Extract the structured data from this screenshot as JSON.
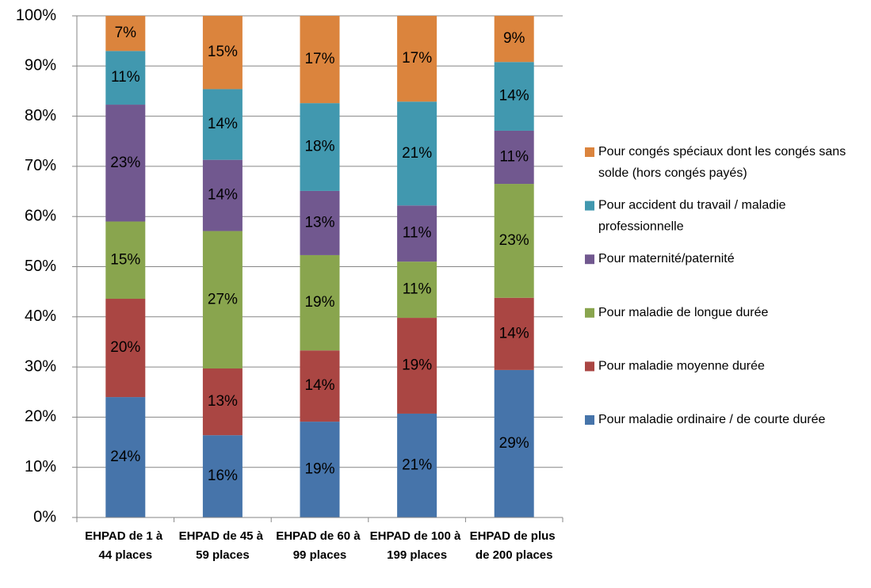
{
  "chart_data": {
    "type": "stacked_bar",
    "categories": [
      "EHPAD de 1 à 44 places",
      "EHPAD de 45 à 59 places",
      "EHPAD de 60 à 99 places",
      "EHPAD de 100 à 199 places",
      "EHPAD de plus de 200 places"
    ],
    "series": [
      {
        "name": "Pour maladie ordinaire / de courte durée",
        "color": "#4674aa",
        "values": [
          24.0,
          16.4,
          19.1,
          20.7,
          29.4
        ],
        "value_labels": [
          "24%",
          "16%",
          "19%",
          "21%",
          "29%"
        ]
      },
      {
        "name": "Pour maladie moyenne durée",
        "color": "#aa4643",
        "values": [
          19.6,
          13.3,
          14.2,
          19.1,
          14.4
        ],
        "value_labels": [
          "20%",
          "13%",
          "14%",
          "19%",
          "14%"
        ]
      },
      {
        "name": "Pour maladie de longue durée",
        "color": "#89a54e",
        "values": [
          15.4,
          27.4,
          19.0,
          11.2,
          22.7
        ],
        "value_labels": [
          "15%",
          "27%",
          "19%",
          "11%",
          "23%"
        ]
      },
      {
        "name": "Pour maternité/paternité",
        "color": "#71588f",
        "values": [
          23.3,
          14.2,
          12.8,
          11.2,
          10.6
        ],
        "value_labels": [
          "23%",
          "14%",
          "13%",
          "11%",
          "11%"
        ]
      },
      {
        "name": "Pour accident du travail / maladie professionnelle",
        "color": "#4198af",
        "values": [
          10.7,
          14.1,
          17.5,
          20.7,
          13.7
        ],
        "value_labels": [
          "11%",
          "14%",
          "18%",
          "21%",
          "14%"
        ]
      },
      {
        "name": "Pour congés spéciaux dont les congés sans solde (hors congés payés)",
        "color": "#db843d",
        "values": [
          7.0,
          14.6,
          17.4,
          17.1,
          9.2
        ],
        "value_labels": [
          "7%",
          "15%",
          "17%",
          "17%",
          "9%"
        ]
      }
    ],
    "ylim": [
      0,
      100
    ],
    "yticks": [
      {
        "value": 0,
        "label": "0%"
      },
      {
        "value": 10,
        "label": "10%"
      },
      {
        "value": 20,
        "label": "20%"
      },
      {
        "value": 30,
        "label": "30%"
      },
      {
        "value": 40,
        "label": "40%"
      },
      {
        "value": 50,
        "label": "50%"
      },
      {
        "value": 60,
        "label": "60%"
      },
      {
        "value": 70,
        "label": "70%"
      },
      {
        "value": 80,
        "label": "80%"
      },
      {
        "value": 90,
        "label": "90%"
      },
      {
        "value": 100,
        "label": "100%"
      }
    ],
    "grid": true,
    "legend": "right"
  }
}
